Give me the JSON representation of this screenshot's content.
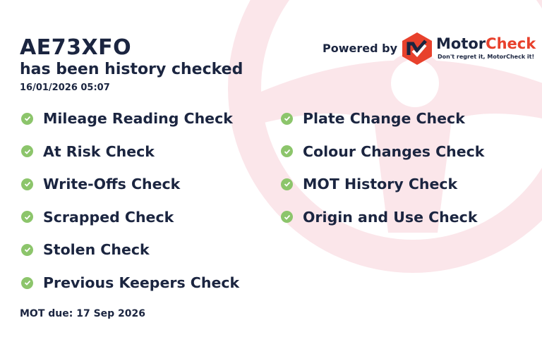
{
  "header": {
    "plate": "AE73XFO",
    "subtitle": "has been history checked",
    "timestamp": "16/01/2026 05:07"
  },
  "branding": {
    "powered_by": "Powered by",
    "brand_part1": "Motor",
    "brand_part2": "Check",
    "tagline": "Don't regret it, MotorCheck it!",
    "logo_icon": "motorcheck-hexagon-logo"
  },
  "checks_left": [
    {
      "label": "Mileage Reading Check"
    },
    {
      "label": "At Risk Check"
    },
    {
      "label": "Write-Offs Check"
    },
    {
      "label": "Scrapped Check"
    },
    {
      "label": "Stolen Check"
    },
    {
      "label": "Previous Keepers Check"
    }
  ],
  "checks_right": [
    {
      "label": "Plate Change Check"
    },
    {
      "label": "Colour Changes Check"
    },
    {
      "label": "MOT History Check"
    },
    {
      "label": "Origin and Use Check"
    }
  ],
  "footer": {
    "mot_due": "MOT due: 17 Sep 2026"
  },
  "colors": {
    "text": "#1b2540",
    "check": "#8cc56b",
    "brand_red": "#e8412c",
    "background_wheel": "#fbe6ea"
  }
}
